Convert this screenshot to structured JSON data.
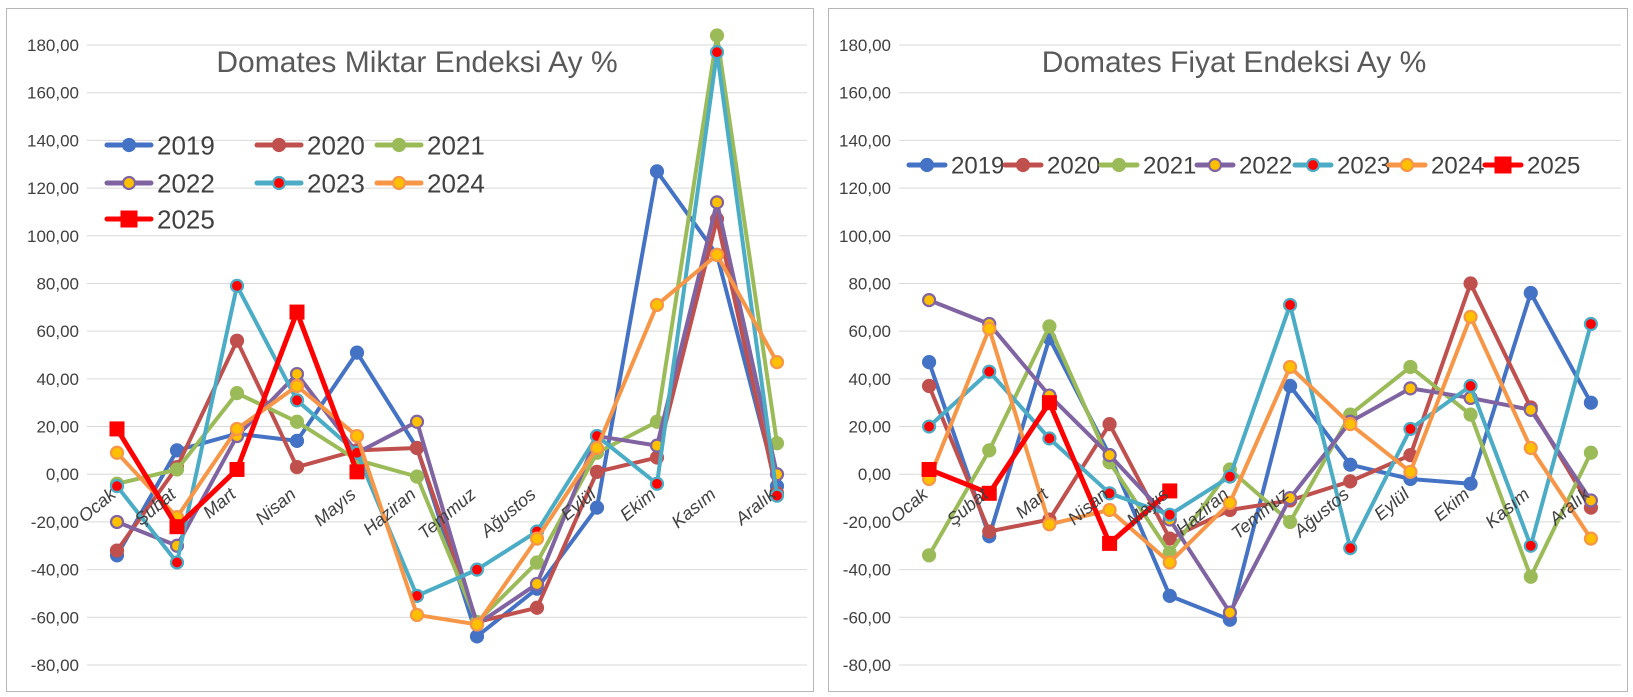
{
  "months": [
    "Ocak",
    "Şubat",
    "Mart",
    "Nisan",
    "Mayıs",
    "Haziran",
    "Temmuz",
    "Ağustos",
    "Eylül",
    "Ekim",
    "Kasım",
    "Aralık"
  ],
  "y_ticks": [
    "180,00",
    "160,00",
    "140,00",
    "120,00",
    "100,00",
    "80,00",
    "60,00",
    "40,00",
    "20,00",
    "0,00",
    "-20,00",
    "-40,00",
    "-60,00",
    "-80,00"
  ],
  "styles": {
    "2019": {
      "color": "#4472c4",
      "marker": "circle",
      "fill": "#4472c4"
    },
    "2020": {
      "color": "#c0504d",
      "marker": "circle",
      "fill": "#c0504d"
    },
    "2021": {
      "color": "#9bbb59",
      "marker": "circle",
      "fill": "#9bbb59"
    },
    "2022": {
      "color": "#8064a2",
      "marker": "circle",
      "fill": "#ffc000"
    },
    "2023": {
      "color": "#4bacc6",
      "marker": "circle",
      "fill": "#ff0000"
    },
    "2024": {
      "color": "#f79646",
      "marker": "circle",
      "fill": "#ffc000"
    },
    "2025": {
      "color": "#ff0000",
      "marker": "square",
      "fill": "#ff0000"
    }
  },
  "chart_data": [
    {
      "type": "line",
      "title": "Domates Miktar Endeksi Ay  %",
      "ylim": [
        -80,
        180
      ],
      "grid": true,
      "legend_position": "top-left",
      "categories": [
        "Ocak",
        "Şubat",
        "Mart",
        "Nisan",
        "Mayıs",
        "Haziran",
        "Temmuz",
        "Ağustos",
        "Eylül",
        "Ekim",
        "Kasım",
        "Aralık"
      ],
      "series": [
        {
          "name": "2019",
          "values": [
            -34,
            10,
            17,
            14,
            51,
            11,
            -68,
            -48,
            -14,
            127,
            92,
            -5
          ]
        },
        {
          "name": "2020",
          "values": [
            -32,
            3,
            56,
            3,
            10,
            11,
            -62,
            -56,
            1,
            7,
            107,
            -8
          ]
        },
        {
          "name": "2021",
          "values": [
            -4,
            2,
            34,
            22,
            6,
            -1,
            -62,
            -37,
            9,
            22,
            184,
            13
          ]
        },
        {
          "name": "2022",
          "values": [
            -20,
            -30,
            16,
            42,
            9,
            22,
            -63,
            -46,
            16,
            12,
            114,
            0
          ]
        },
        {
          "name": "2023",
          "values": [
            -5,
            -37,
            79,
            31,
            9,
            -51,
            -40,
            -24,
            16,
            -4,
            177,
            -9
          ]
        },
        {
          "name": "2024",
          "values": [
            9,
            -18,
            19,
            37,
            16,
            -59,
            -63,
            -27,
            11,
            71,
            92,
            47
          ]
        },
        {
          "name": "2025",
          "values": [
            19,
            -22,
            2,
            68,
            1,
            null,
            null,
            null,
            null,
            null,
            null,
            null
          ]
        }
      ]
    },
    {
      "type": "line",
      "title": "Domates Fiyat Endeksi Ay %",
      "ylim": [
        -80,
        180
      ],
      "grid": true,
      "legend_position": "top",
      "categories": [
        "Ocak",
        "Şubat",
        "Mart",
        "Nisan",
        "Mayıs",
        "Haziran",
        "Temmuz",
        "Ağustos",
        "Eylül",
        "Ekim",
        "Kasım",
        "Aralık"
      ],
      "series": [
        {
          "name": "2019",
          "values": [
            47,
            -26,
            57,
            8,
            -51,
            -61,
            37,
            4,
            -2,
            -4,
            76,
            30
          ]
        },
        {
          "name": "2020",
          "values": [
            37,
            -24,
            -19,
            21,
            -27,
            -15,
            -11,
            -3,
            8,
            80,
            28,
            -14
          ]
        },
        {
          "name": "2021",
          "values": [
            -34,
            10,
            62,
            5,
            -33,
            2,
            -20,
            25,
            45,
            25,
            -43,
            9
          ]
        },
        {
          "name": "2022",
          "values": [
            73,
            63,
            33,
            8,
            -19,
            -58,
            -10,
            22,
            36,
            32,
            27,
            -11
          ]
        },
        {
          "name": "2023",
          "values": [
            20,
            43,
            15,
            -8,
            -17,
            -1,
            71,
            -31,
            19,
            37,
            -30,
            63
          ]
        },
        {
          "name": "2024",
          "values": [
            -2,
            61,
            -21,
            -15,
            -37,
            -12,
            45,
            21,
            1,
            66,
            11,
            -27
          ]
        },
        {
          "name": "2025",
          "values": [
            2,
            -8,
            30,
            -29,
            -7,
            null,
            null,
            null,
            null,
            null,
            null,
            null
          ]
        }
      ]
    }
  ]
}
